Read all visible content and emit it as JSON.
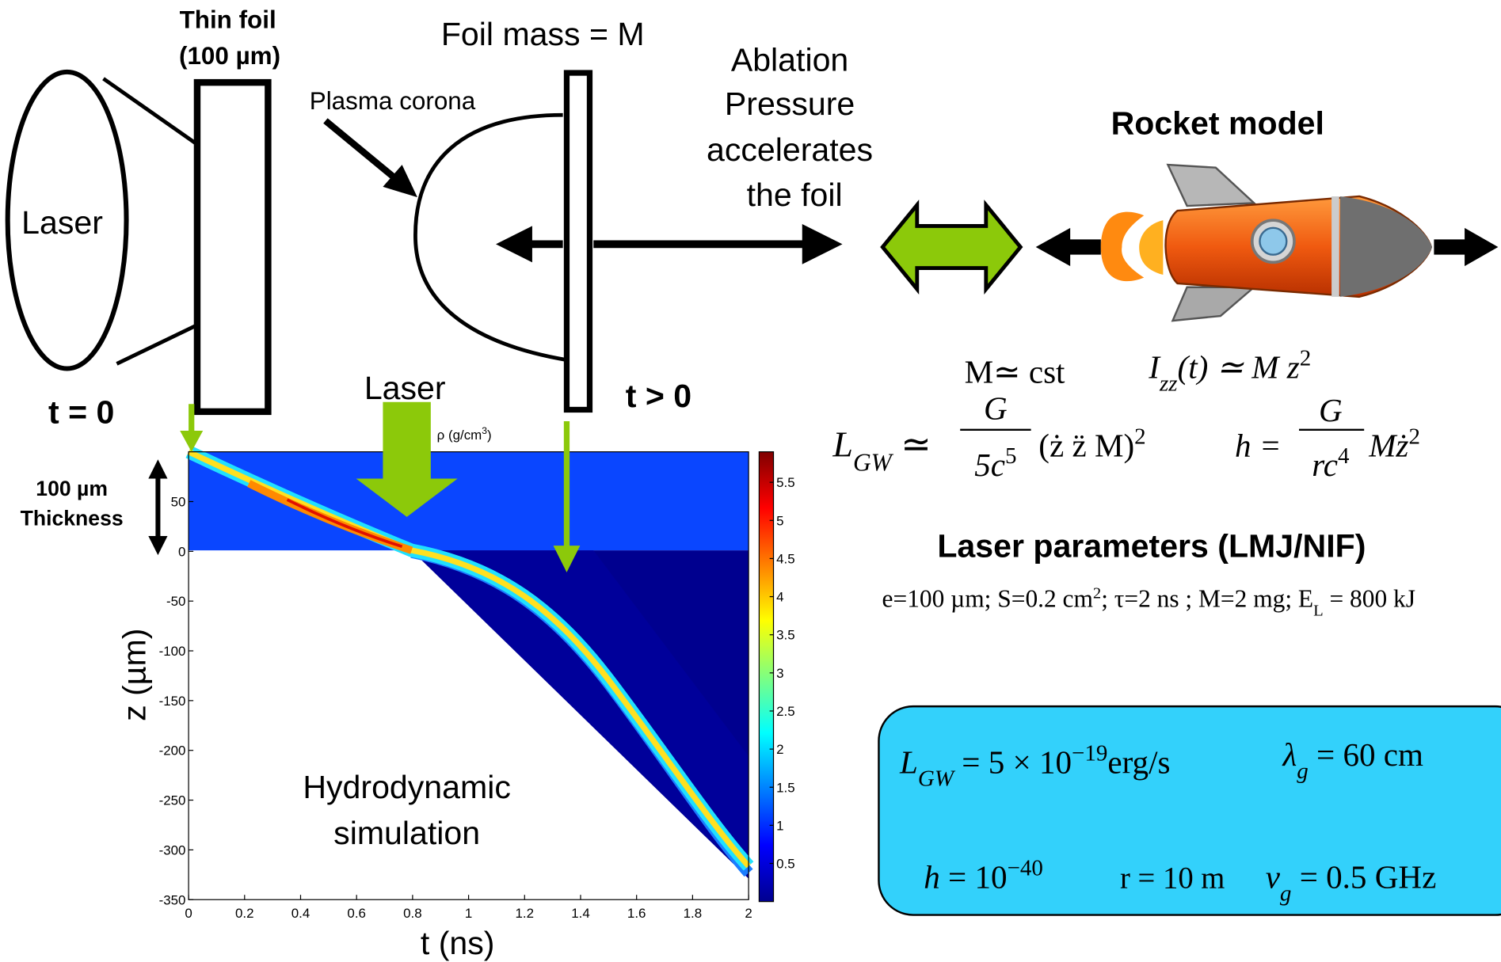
{
  "labels": {
    "thin_foil": "Thin foil",
    "thin_foil_thickness": "(100 µm)",
    "foil_mass": "Foil mass = M",
    "plasma_corona": "Plasma corona",
    "laser_left": "Laser",
    "t_zero": "t = 0",
    "t_positive": "t > 0",
    "ablation": [
      "Ablation",
      "Pressure",
      "accelerates",
      "the foil"
    ],
    "rocket_model": "Rocket model",
    "laser_arrow": "Laser",
    "thickness": [
      "100 µm",
      "Thickness"
    ],
    "hydro": [
      "Hydrodynamic",
      "simulation"
    ],
    "laser_params_title": "Laser parameters (LMJ/NIF)",
    "laser_params": [
      "e=100 µm; S=0.2 cm",
      "2",
      "; τ=2 ns ; M=2 mg; E",
      "L",
      " = 800 kJ"
    ]
  },
  "equations": {
    "mass": "M≃ cst",
    "inertia": [
      "I",
      "zz",
      "(t) ≃ M z",
      "2"
    ],
    "luminosity": [
      "L",
      "GW",
      " ≃ ",
      "G",
      "5c",
      "5",
      "(ż z̈ M)",
      "2"
    ],
    "strain": [
      "h = ",
      "G",
      "rc",
      "4",
      "Mż",
      "2"
    ]
  },
  "results": {
    "luminosity": [
      "L",
      "GW",
      " = 5 × 10",
      "−19",
      "erg/s"
    ],
    "wavelength": [
      "λ",
      "g",
      " = 60 cm"
    ],
    "strain": [
      "h",
      " = 10",
      "−40"
    ],
    "distance": "r = 10 m",
    "frequency": [
      "ν",
      "g",
      " = 0.5 GHz"
    ]
  },
  "chart_data": {
    "type": "heatmap",
    "x_label": "t (ns)",
    "y_label": "z (µm)",
    "colorbar_label": [
      "ρ (g/cm",
      "3",
      ")"
    ],
    "xlim": [
      0,
      2
    ],
    "xticks": [
      0,
      0.2,
      0.4,
      0.6,
      0.8,
      1,
      1.2,
      1.4,
      1.6,
      1.8,
      2
    ],
    "ylim": [
      -350,
      100
    ],
    "yticks": [
      -350,
      -300,
      -250,
      -200,
      -150,
      -100,
      -50,
      0,
      50
    ],
    "colorbar_lim": [
      0,
      5.9
    ],
    "colorbar_ticks": [
      0.5,
      1,
      1.5,
      2,
      2.5,
      3,
      3.5,
      4,
      4.5,
      5,
      5.5
    ]
  }
}
